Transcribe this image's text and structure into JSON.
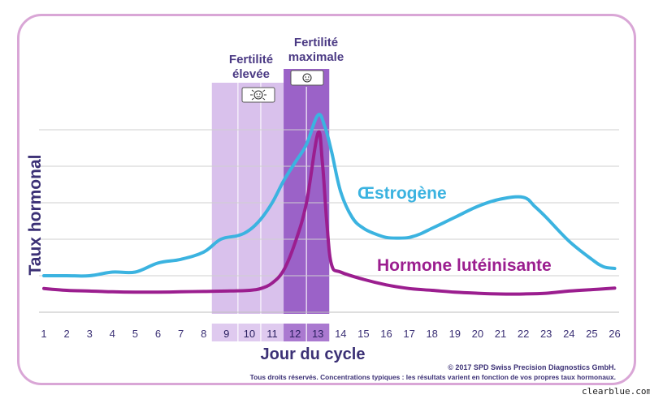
{
  "chart_data": {
    "type": "line",
    "ylabel": "Taux hormonal",
    "xlabel": "Jour du cycle",
    "x": [
      1,
      2,
      3,
      4,
      5,
      6,
      7,
      8,
      9,
      10,
      11,
      12,
      13,
      14,
      15,
      16,
      17,
      18,
      19,
      20,
      21,
      22,
      23,
      24,
      25,
      26
    ],
    "xlim": [
      1,
      26
    ],
    "ylim": [
      0,
      6
    ],
    "grid": true,
    "y_ticks_shown": false,
    "series": [
      {
        "name": "Œstrogène",
        "color": "#3bb3e0",
        "points": [
          [
            1,
            1.0
          ],
          [
            2,
            1.0
          ],
          [
            3,
            1.0
          ],
          [
            4,
            1.1
          ],
          [
            5,
            1.1
          ],
          [
            6,
            1.35
          ],
          [
            7,
            1.45
          ],
          [
            8,
            1.65
          ],
          [
            8.75,
            2.0
          ],
          [
            9.5,
            2.1
          ],
          [
            10,
            2.25
          ],
          [
            10.5,
            2.55
          ],
          [
            11,
            3.0
          ],
          [
            11.5,
            3.6
          ],
          [
            12,
            4.1
          ],
          [
            12.5,
            4.6
          ],
          [
            13,
            5.4
          ],
          [
            13.3,
            5.1
          ],
          [
            13.6,
            4.4
          ],
          [
            14,
            3.3
          ],
          [
            14.5,
            2.6
          ],
          [
            15,
            2.3
          ],
          [
            15.5,
            2.15
          ],
          [
            16,
            2.05
          ],
          [
            16.5,
            2.03
          ],
          [
            17,
            2.05
          ],
          [
            17.5,
            2.15
          ],
          [
            18,
            2.3
          ],
          [
            18.5,
            2.45
          ],
          [
            19,
            2.6
          ],
          [
            20,
            2.9
          ],
          [
            21,
            3.1
          ],
          [
            22,
            3.15
          ],
          [
            22.5,
            2.9
          ],
          [
            23,
            2.6
          ],
          [
            24,
            1.95
          ],
          [
            25,
            1.45
          ],
          [
            25.5,
            1.25
          ],
          [
            26,
            1.2
          ]
        ]
      },
      {
        "name": "Hormone lutéinisante",
        "color": "#9b1e8f",
        "points": [
          [
            1,
            0.65
          ],
          [
            2,
            0.6
          ],
          [
            3,
            0.58
          ],
          [
            4,
            0.56
          ],
          [
            5,
            0.55
          ],
          [
            6,
            0.55
          ],
          [
            7,
            0.56
          ],
          [
            8,
            0.57
          ],
          [
            9,
            0.58
          ],
          [
            10,
            0.6
          ],
          [
            10.5,
            0.65
          ],
          [
            11,
            0.8
          ],
          [
            11.5,
            1.15
          ],
          [
            12,
            1.9
          ],
          [
            12.5,
            3.0
          ],
          [
            13,
            4.9
          ],
          [
            13.2,
            4.1
          ],
          [
            13.4,
            2.4
          ],
          [
            13.6,
            1.3
          ],
          [
            14,
            1.1
          ],
          [
            15,
            0.9
          ],
          [
            16,
            0.75
          ],
          [
            17,
            0.65
          ],
          [
            18,
            0.6
          ],
          [
            19,
            0.55
          ],
          [
            20,
            0.52
          ],
          [
            21,
            0.5
          ],
          [
            22,
            0.5
          ],
          [
            23,
            0.52
          ],
          [
            24,
            0.58
          ],
          [
            25,
            0.62
          ],
          [
            26,
            0.66
          ]
        ]
      }
    ],
    "zones": [
      {
        "label": "Fertilité élevée",
        "from_day": 9,
        "to_day": 11,
        "color": "#d9c1ec",
        "icon": "sun-face-icon"
      },
      {
        "label": "Fertilité maximale",
        "from_day": 12,
        "to_day": 13,
        "color": "#9b62c8",
        "icon": "smiley-face-icon"
      }
    ]
  },
  "labels": {
    "zone_high_line1": "Fertilité",
    "zone_high_line2": "élevée",
    "zone_peak_line1": "Fertilité",
    "zone_peak_line2": "maximale",
    "estrogen": "Œstrogène",
    "lh": "Hormone lutéinisante",
    "copyright": "© 2017 SPD Swiss Precision Diagnostics GmbH.",
    "disclaimer": "Tous droits réservés. Concentrations typiques : les résultats varient en fonction de vos propres taux hormonaux.",
    "watermark": "clearblue.com"
  }
}
